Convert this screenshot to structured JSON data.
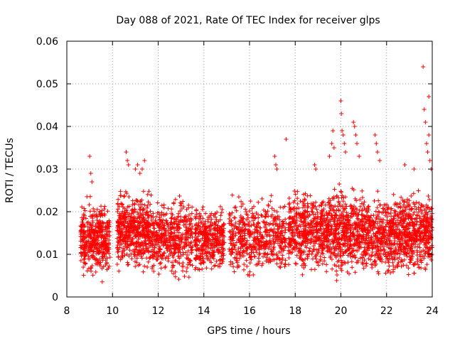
{
  "chart_data": {
    "type": "scatter",
    "title": "Day 088 of 2021, Rate Of TEC Index for receiver glps",
    "xlabel": "GPS time / hours",
    "ylabel": "ROTI / TECUs",
    "xlim": [
      8,
      24
    ],
    "ylim": [
      0,
      0.06
    ],
    "x_ticks": [
      8,
      10,
      12,
      14,
      16,
      18,
      20,
      22,
      24
    ],
    "x_tick_labels": [
      "8",
      "10",
      "12",
      "14",
      "16",
      "18",
      "20",
      "22",
      "24"
    ],
    "y_ticks": [
      0,
      0.01,
      0.02,
      0.03,
      0.04,
      0.05,
      0.06
    ],
    "y_tick_labels": [
      "0",
      "0.01",
      "0.02",
      "0.03",
      "0.04",
      "0.05",
      "0.06"
    ],
    "grid": true,
    "marker": "+",
    "color": "#ff0000",
    "series": [
      {
        "name": "ROTI",
        "clusters": [
          {
            "x": [
              8.6,
              9.9
            ],
            "y": [
              0.003,
              0.024
            ],
            "n": 420
          },
          {
            "x": [
              10.2,
              11.6
            ],
            "y": [
              0.004,
              0.027
            ],
            "n": 480
          },
          {
            "x": [
              11.6,
              13.5
            ],
            "y": [
              0.003,
              0.025
            ],
            "n": 480
          },
          {
            "x": [
              13.6,
              14.9
            ],
            "y": [
              0.004,
              0.023
            ],
            "n": 360
          },
          {
            "x": [
              15.1,
              17.6
            ],
            "y": [
              0.003,
              0.025
            ],
            "n": 520
          },
          {
            "x": [
              17.7,
              19.2
            ],
            "y": [
              0.004,
              0.027
            ],
            "n": 420
          },
          {
            "x": [
              19.2,
              21.0
            ],
            "y": [
              0.003,
              0.028
            ],
            "n": 560
          },
          {
            "x": [
              21.0,
              22.6
            ],
            "y": [
              0.003,
              0.026
            ],
            "n": 460
          },
          {
            "x": [
              22.6,
              24.0
            ],
            "y": [
              0.003,
              0.027
            ],
            "n": 460
          }
        ],
        "points": [
          [
            9.0,
            0.033
          ],
          [
            9.05,
            0.029
          ],
          [
            9.1,
            0.027
          ],
          [
            10.6,
            0.034
          ],
          [
            10.65,
            0.032
          ],
          [
            10.7,
            0.031
          ],
          [
            11.0,
            0.03
          ],
          [
            11.1,
            0.031
          ],
          [
            11.2,
            0.029
          ],
          [
            11.3,
            0.03
          ],
          [
            11.4,
            0.032
          ],
          [
            17.1,
            0.033
          ],
          [
            17.15,
            0.031
          ],
          [
            17.2,
            0.03
          ],
          [
            17.6,
            0.037
          ],
          [
            18.85,
            0.031
          ],
          [
            18.9,
            0.03
          ],
          [
            19.5,
            0.033
          ],
          [
            19.6,
            0.036
          ],
          [
            19.65,
            0.039
          ],
          [
            19.7,
            0.035
          ],
          [
            20.0,
            0.046
          ],
          [
            20.02,
            0.043
          ],
          [
            20.05,
            0.039
          ],
          [
            20.1,
            0.038
          ],
          [
            20.15,
            0.036
          ],
          [
            20.2,
            0.034
          ],
          [
            20.55,
            0.041
          ],
          [
            20.6,
            0.04
          ],
          [
            20.65,
            0.038
          ],
          [
            20.7,
            0.036
          ],
          [
            20.8,
            0.033
          ],
          [
            21.5,
            0.038
          ],
          [
            21.55,
            0.036
          ],
          [
            21.6,
            0.034
          ],
          [
            21.7,
            0.032
          ],
          [
            22.8,
            0.031
          ],
          [
            23.2,
            0.03
          ],
          [
            23.6,
            0.054
          ],
          [
            23.65,
            0.044
          ],
          [
            23.7,
            0.041
          ],
          [
            23.75,
            0.036
          ],
          [
            23.8,
            0.034
          ],
          [
            23.85,
            0.038
          ],
          [
            23.9,
            0.032
          ],
          [
            23.95,
            0.03
          ],
          [
            23.85,
            0.047
          ]
        ]
      }
    ]
  }
}
